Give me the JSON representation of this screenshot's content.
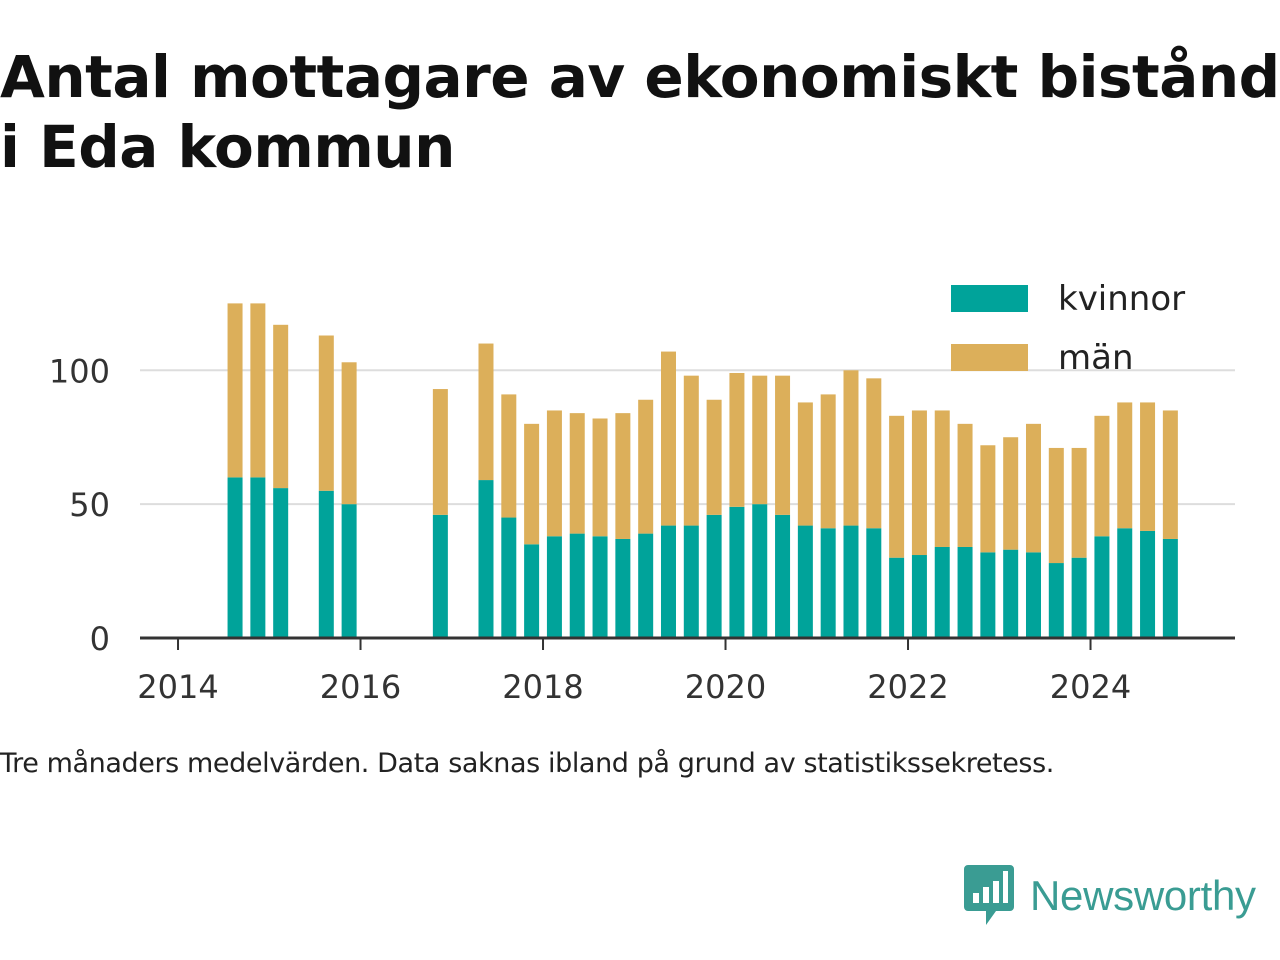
{
  "title": "Antal mottagare av ekonomiskt bistånd i Eda kommun",
  "caption": "Tre månaders medelvärden. Data saknas ibland på grund av statistikssekretess.",
  "brand": {
    "name": "Newsworthy",
    "icon": "newsworthy-logo-icon"
  },
  "colors": {
    "kvinnor": "#00a39a",
    "man": "#dcaf5a",
    "axis": "#333333",
    "grid": "#dddddd"
  },
  "chart_data": {
    "type": "bar",
    "stacked": true,
    "x_type": "date",
    "x": [
      "2014-08",
      "2014-11",
      "2015-02",
      "2015-08",
      "2015-11",
      "2016-11",
      "2017-05",
      "2017-08",
      "2017-11",
      "2018-02",
      "2018-05",
      "2018-08",
      "2018-11",
      "2019-02",
      "2019-05",
      "2019-08",
      "2019-11",
      "2020-02",
      "2020-05",
      "2020-08",
      "2020-11",
      "2021-02",
      "2021-05",
      "2021-08",
      "2021-11",
      "2022-02",
      "2022-05",
      "2022-08",
      "2022-11",
      "2023-02",
      "2023-05",
      "2023-08",
      "2023-11",
      "2024-02",
      "2024-05",
      "2024-08",
      "2024-11"
    ],
    "series": [
      {
        "name": "kvinnor",
        "values": [
          60,
          60,
          56,
          55,
          50,
          46,
          59,
          45,
          35,
          38,
          39,
          38,
          37,
          39,
          42,
          42,
          46,
          49,
          50,
          46,
          42,
          41,
          42,
          41,
          30,
          31,
          34,
          34,
          32,
          33,
          32,
          28,
          30,
          38,
          41,
          40,
          37
        ]
      },
      {
        "name": "män",
        "values": [
          65,
          65,
          61,
          58,
          53,
          47,
          51,
          46,
          45,
          47,
          45,
          44,
          47,
          50,
          65,
          56,
          43,
          50,
          48,
          52,
          46,
          50,
          58,
          56,
          53,
          54,
          51,
          46,
          40,
          42,
          48,
          43,
          41,
          45,
          47,
          48,
          48
        ]
      }
    ],
    "xlim": [
      "2013-08",
      "2025-08"
    ],
    "ylim": [
      0,
      130
    ],
    "y_ticks": [
      0,
      50,
      100
    ],
    "x_ticks": [
      "2014",
      "2016",
      "2018",
      "2020",
      "2022",
      "2024"
    ],
    "grid": true,
    "legend_position": "top-right"
  }
}
